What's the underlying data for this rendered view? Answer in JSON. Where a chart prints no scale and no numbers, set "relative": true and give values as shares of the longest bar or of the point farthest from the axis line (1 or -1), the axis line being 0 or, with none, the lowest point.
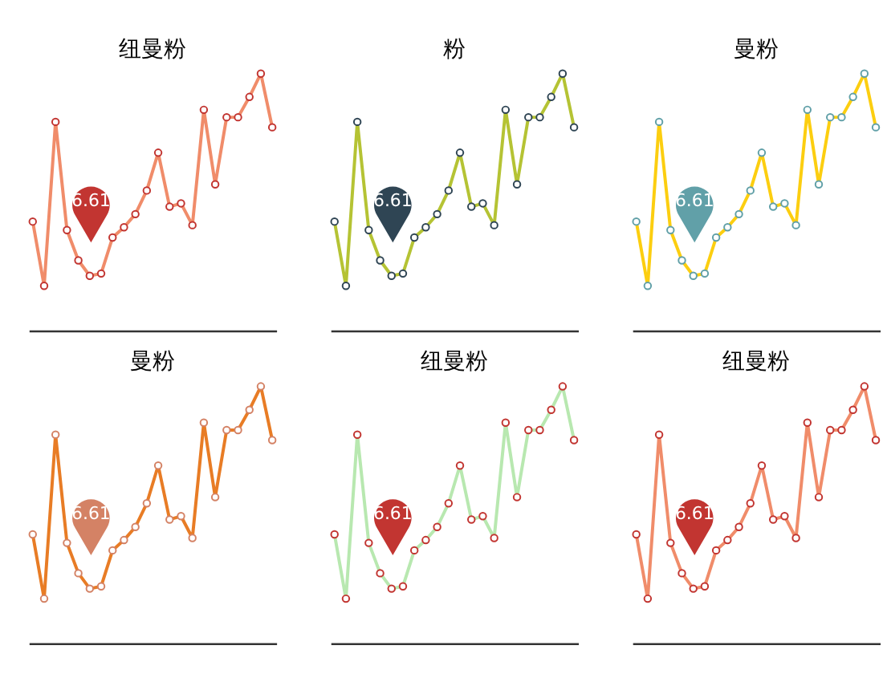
{
  "chart_data": [
    {
      "type": "line",
      "title": "纽曼粉",
      "relative": true,
      "categories": [
        null,
        null,
        null,
        null,
        null,
        null,
        null,
        null,
        null,
        null,
        null,
        null,
        null,
        null,
        null,
        null,
        null,
        null,
        null,
        null,
        null,
        null
      ],
      "series": [
        {
          "color": "#f08c6a",
          "values": [
            0.424,
            0.174,
            0.812,
            0.391,
            0.273,
            0.213,
            0.222,
            0.362,
            0.402,
            0.453,
            0.545,
            0.692,
            0.482,
            0.495,
            0.41,
            0.859,
            0.569,
            0.83,
            0.83,
            0.909,
            1,
            0.791
          ]
        }
      ],
      "marker": "circle",
      "annotations": [
        "6.61"
      ]
    },
    {
      "type": "line",
      "title": "粉",
      "relative": true,
      "categories": [
        null,
        null,
        null,
        null,
        null,
        null,
        null,
        null,
        null,
        null,
        null,
        null,
        null,
        null,
        null,
        null,
        null,
        null,
        null,
        null,
        null,
        null
      ],
      "series": [
        {
          "color": "#b5c334",
          "values": [
            0.424,
            0.174,
            0.812,
            0.391,
            0.273,
            0.213,
            0.222,
            0.362,
            0.402,
            0.453,
            0.545,
            0.692,
            0.482,
            0.495,
            0.41,
            0.859,
            0.569,
            0.83,
            0.83,
            0.909,
            1,
            0.791
          ]
        }
      ],
      "marker": "circle",
      "annotations": [
        "6.61"
      ]
    },
    {
      "type": "line",
      "title": "曼粉",
      "relative": true,
      "categories": [
        null,
        null,
        null,
        null,
        null,
        null,
        null,
        null,
        null,
        null,
        null,
        null,
        null,
        null,
        null,
        null,
        null,
        null,
        null,
        null,
        null,
        null
      ],
      "series": [
        {
          "color": "#fcce10",
          "values": [
            0.424,
            0.174,
            0.812,
            0.391,
            0.273,
            0.213,
            0.222,
            0.362,
            0.402,
            0.453,
            0.545,
            0.692,
            0.482,
            0.495,
            0.41,
            0.859,
            0.569,
            0.83,
            0.83,
            0.909,
            1,
            0.791
          ]
        }
      ],
      "marker": "circle",
      "annotations": [
        "6.61"
      ]
    },
    {
      "type": "line",
      "title": "曼粉",
      "relative": true,
      "categories": [
        null,
        null,
        null,
        null,
        null,
        null,
        null,
        null,
        null,
        null,
        null,
        null,
        null,
        null,
        null,
        null,
        null,
        null,
        null,
        null,
        null,
        null
      ],
      "series": [
        {
          "color": "#e87c25",
          "values": [
            0.424,
            0.174,
            0.812,
            0.391,
            0.273,
            0.213,
            0.222,
            0.362,
            0.402,
            0.453,
            0.545,
            0.692,
            0.482,
            0.495,
            0.41,
            0.859,
            0.569,
            0.83,
            0.83,
            0.909,
            1,
            0.791
          ]
        }
      ],
      "marker": "circle",
      "annotations": [
        "6.61"
      ]
    },
    {
      "type": "line",
      "title": "纽曼粉",
      "relative": true,
      "categories": [
        null,
        null,
        null,
        null,
        null,
        null,
        null,
        null,
        null,
        null,
        null,
        null,
        null,
        null,
        null,
        null,
        null,
        null,
        null,
        null,
        null,
        null
      ],
      "series": [
        {
          "color": "#b8e8b0",
          "values": [
            0.424,
            0.174,
            0.812,
            0.391,
            0.273,
            0.213,
            0.222,
            0.362,
            0.402,
            0.453,
            0.545,
            0.692,
            0.482,
            0.495,
            0.41,
            0.859,
            0.569,
            0.83,
            0.83,
            0.909,
            1,
            0.791
          ]
        }
      ],
      "marker": "circle",
      "annotations": [
        "6.61"
      ]
    },
    {
      "type": "line",
      "title": "纽曼粉",
      "relative": true,
      "categories": [
        null,
        null,
        null,
        null,
        null,
        null,
        null,
        null,
        null,
        null,
        null,
        null,
        null,
        null,
        null,
        null,
        null,
        null,
        null,
        null,
        null,
        null
      ],
      "series": [
        {
          "color": "#f08c6a",
          "values": [
            0.424,
            0.174,
            0.812,
            0.391,
            0.273,
            0.213,
            0.222,
            0.362,
            0.402,
            0.453,
            0.545,
            0.692,
            0.482,
            0.495,
            0.41,
            0.859,
            0.569,
            0.83,
            0.83,
            0.909,
            1,
            0.791
          ]
        }
      ],
      "marker": "circle",
      "annotations": [
        "6.61"
      ]
    }
  ]
}
